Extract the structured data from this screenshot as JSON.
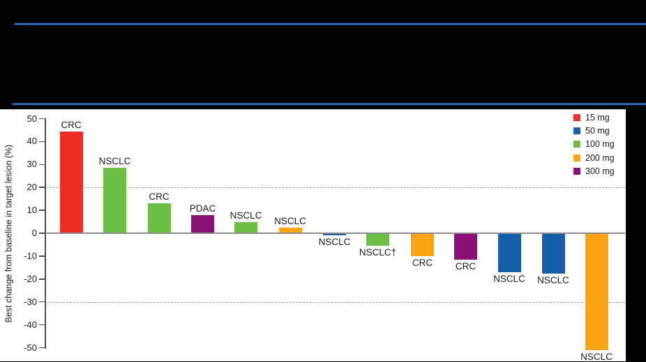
{
  "banner": {
    "rule_color": "#2B66B0",
    "background": "#000000"
  },
  "chart_data": {
    "type": "bar",
    "subtype": "waterfall",
    "title": "",
    "xlabel": "",
    "ylabel": "Best change from baseline in target lesion (%)",
    "ylim": [
      -50,
      50
    ],
    "ytick_step": 10,
    "yticks": [
      50,
      40,
      30,
      20,
      10,
      0,
      -10,
      -20,
      -30,
      -40,
      -50
    ],
    "reference_lines": [
      20,
      -30
    ],
    "grid": "off",
    "legend_position": "top-right",
    "legend_title": "",
    "doses": [
      {
        "label": "15 mg",
        "color": "#EE2E24"
      },
      {
        "label": "50 mg",
        "color": "#1560A8"
      },
      {
        "label": "100 mg",
        "color": "#6CBE45"
      },
      {
        "label": "200 mg",
        "color": "#FCA311"
      },
      {
        "label": "300 mg",
        "color": "#8B1176"
      }
    ],
    "bars": [
      {
        "label": "CRC",
        "dose": "15 mg",
        "value": 44.5
      },
      {
        "label": "NSCLC",
        "dose": "100 mg",
        "value": 28.5
      },
      {
        "label": "CRC",
        "dose": "100 mg",
        "value": 13
      },
      {
        "label": "PDAC",
        "dose": "300 mg",
        "value": 8
      },
      {
        "label": "NSCLC",
        "dose": "100 mg",
        "value": 5
      },
      {
        "label": "NSCLC",
        "dose": "200 mg",
        "value": 2.5
      },
      {
        "label": "NSCLC",
        "dose": "50 mg",
        "value": -1
      },
      {
        "label": "NSCLC†",
        "dose": "100 mg",
        "value": -5.5
      },
      {
        "label": "CRC",
        "dose": "200 mg",
        "value": -10
      },
      {
        "label": "CRC",
        "dose": "300 mg",
        "value": -11.5
      },
      {
        "label": "NSCLC",
        "dose": "50 mg",
        "value": -17
      },
      {
        "label": "NSCLC",
        "dose": "50 mg",
        "value": -17.5
      },
      {
        "label": "NSCLC",
        "dose": "200 mg",
        "value": -51
      }
    ],
    "colors": {
      "axis": "#4a4a4a",
      "zero_line": "#8c8c8c",
      "reference_dash": "#9b9b9b",
      "text": "#1c1c1c"
    }
  }
}
